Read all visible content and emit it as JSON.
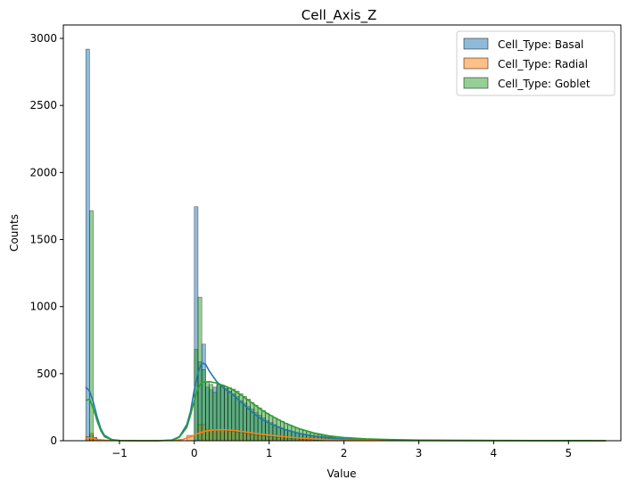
{
  "chart_data": {
    "type": "bar",
    "subtype": "histogram-with-kde",
    "title": "Cell_Axis_Z",
    "xlabel": "Value",
    "ylabel": "Counts",
    "xlim": [
      -1.75,
      5.7
    ],
    "ylim": [
      0,
      3100
    ],
    "xticks": [
      -1,
      0,
      1,
      2,
      3,
      4,
      5
    ],
    "yticks": [
      0,
      500,
      1000,
      1500,
      2000,
      2500,
      3000
    ],
    "grid": false,
    "legend_position": "top-right",
    "series": [
      {
        "name": "Cell_Type: Basal",
        "color": "#1f77b4",
        "bins": [
          [
            -1.45,
            -1.4,
            2920
          ],
          [
            -1.4,
            -1.35,
            40
          ],
          [
            0.0,
            0.05,
            1745
          ],
          [
            0.05,
            0.1,
            590
          ],
          [
            0.1,
            0.15,
            720
          ],
          [
            0.15,
            0.2,
            400
          ],
          [
            0.2,
            0.25,
            380
          ],
          [
            0.25,
            0.3,
            400
          ],
          [
            0.3,
            0.35,
            420
          ],
          [
            0.35,
            0.4,
            405
          ],
          [
            0.4,
            0.45,
            390
          ],
          [
            0.45,
            0.5,
            370
          ],
          [
            0.5,
            0.55,
            350
          ],
          [
            0.55,
            0.6,
            330
          ],
          [
            0.6,
            0.65,
            300
          ],
          [
            0.65,
            0.7,
            280
          ],
          [
            0.7,
            0.75,
            255
          ],
          [
            0.75,
            0.8,
            235
          ],
          [
            0.8,
            0.85,
            210
          ],
          [
            0.85,
            0.9,
            190
          ],
          [
            0.9,
            0.95,
            170
          ],
          [
            0.95,
            1.0,
            150
          ],
          [
            1.0,
            1.05,
            135
          ],
          [
            1.05,
            1.1,
            120
          ],
          [
            1.1,
            1.15,
            105
          ],
          [
            1.15,
            1.2,
            95
          ],
          [
            1.2,
            1.25,
            85
          ],
          [
            1.25,
            1.3,
            75
          ],
          [
            1.3,
            1.35,
            65
          ],
          [
            1.35,
            1.4,
            58
          ],
          [
            1.4,
            1.45,
            50
          ],
          [
            1.45,
            1.5,
            44
          ],
          [
            1.5,
            1.55,
            38
          ],
          [
            1.55,
            1.6,
            33
          ],
          [
            1.6,
            1.65,
            28
          ],
          [
            1.65,
            1.7,
            24
          ],
          [
            1.7,
            1.75,
            20
          ],
          [
            1.75,
            1.8,
            17
          ],
          [
            1.8,
            1.85,
            14
          ],
          [
            1.85,
            1.9,
            12
          ],
          [
            1.9,
            1.95,
            10
          ],
          [
            1.95,
            2.0,
            8
          ],
          [
            2.0,
            2.1,
            12
          ],
          [
            2.1,
            2.2,
            9
          ],
          [
            2.2,
            2.3,
            7
          ],
          [
            2.3,
            2.4,
            5
          ],
          [
            2.4,
            2.5,
            4
          ],
          [
            2.5,
            2.6,
            3
          ],
          [
            2.6,
            2.8,
            4
          ],
          [
            2.8,
            3.0,
            3
          ],
          [
            3.0,
            3.5,
            3
          ],
          [
            3.5,
            4.0,
            2
          ],
          [
            4.0,
            5.5,
            2
          ]
        ],
        "kde": [
          [
            -1.45,
            400
          ],
          [
            -1.4,
            370
          ],
          [
            -1.35,
            290
          ],
          [
            -1.3,
            180
          ],
          [
            -1.25,
            90
          ],
          [
            -1.2,
            40
          ],
          [
            -1.1,
            8
          ],
          [
            -1.0,
            2
          ],
          [
            -0.8,
            0
          ],
          [
            -0.5,
            0
          ],
          [
            -0.3,
            5
          ],
          [
            -0.2,
            30
          ],
          [
            -0.1,
            120
          ],
          [
            -0.05,
            220
          ],
          [
            0.0,
            380
          ],
          [
            0.05,
            510
          ],
          [
            0.1,
            580
          ],
          [
            0.15,
            570
          ],
          [
            0.2,
            520
          ],
          [
            0.3,
            440
          ],
          [
            0.4,
            390
          ],
          [
            0.5,
            350
          ],
          [
            0.6,
            300
          ],
          [
            0.7,
            250
          ],
          [
            0.8,
            200
          ],
          [
            0.9,
            160
          ],
          [
            1.0,
            130
          ],
          [
            1.2,
            85
          ],
          [
            1.4,
            55
          ],
          [
            1.6,
            35
          ],
          [
            1.8,
            22
          ],
          [
            2.0,
            14
          ],
          [
            2.3,
            8
          ],
          [
            2.6,
            5
          ],
          [
            3.0,
            3
          ],
          [
            3.5,
            2
          ],
          [
            4.0,
            1
          ],
          [
            4.5,
            1
          ],
          [
            5.0,
            0
          ],
          [
            5.5,
            0
          ]
        ]
      },
      {
        "name": "Cell_Type: Radial",
        "color": "#ff7f0e",
        "bins": [
          [
            -1.45,
            -1.4,
            30
          ],
          [
            -1.4,
            -1.35,
            55
          ],
          [
            -1.35,
            -1.3,
            25
          ],
          [
            -0.1,
            0.0,
            40
          ],
          [
            0.05,
            0.1,
            120
          ],
          [
            0.1,
            0.15,
            120
          ],
          [
            0.15,
            0.2,
            80
          ],
          [
            0.2,
            0.25,
            80
          ],
          [
            0.25,
            0.3,
            85
          ],
          [
            0.3,
            0.35,
            80
          ],
          [
            0.35,
            0.4,
            78
          ],
          [
            0.4,
            0.45,
            75
          ],
          [
            0.45,
            0.5,
            72
          ],
          [
            0.5,
            0.55,
            68
          ],
          [
            0.55,
            0.6,
            65
          ],
          [
            0.6,
            0.65,
            60
          ],
          [
            0.65,
            0.7,
            56
          ],
          [
            0.7,
            0.75,
            52
          ],
          [
            0.75,
            0.8,
            48
          ],
          [
            0.8,
            0.85,
            44
          ],
          [
            0.85,
            0.9,
            40
          ],
          [
            0.9,
            0.95,
            36
          ],
          [
            0.95,
            1.0,
            32
          ],
          [
            1.0,
            1.05,
            29
          ],
          [
            1.05,
            1.1,
            26
          ],
          [
            1.1,
            1.15,
            23
          ],
          [
            1.15,
            1.2,
            20
          ],
          [
            1.2,
            1.3,
            17
          ],
          [
            1.3,
            1.4,
            14
          ],
          [
            1.4,
            1.5,
            11
          ],
          [
            1.5,
            1.6,
            8
          ],
          [
            1.6,
            1.8,
            6
          ],
          [
            1.8,
            2.0,
            4
          ],
          [
            2.0,
            2.5,
            2
          ]
        ],
        "kde": [
          [
            -1.45,
            20
          ],
          [
            -1.4,
            22
          ],
          [
            -1.35,
            18
          ],
          [
            -1.3,
            10
          ],
          [
            -1.2,
            4
          ],
          [
            -1.0,
            1
          ],
          [
            -0.6,
            0
          ],
          [
            -0.3,
            2
          ],
          [
            -0.15,
            10
          ],
          [
            -0.05,
            30
          ],
          [
            0.05,
            55
          ],
          [
            0.15,
            72
          ],
          [
            0.25,
            80
          ],
          [
            0.35,
            82
          ],
          [
            0.45,
            80
          ],
          [
            0.55,
            75
          ],
          [
            0.65,
            68
          ],
          [
            0.75,
            60
          ],
          [
            0.85,
            52
          ],
          [
            1.0,
            42
          ],
          [
            1.2,
            30
          ],
          [
            1.4,
            20
          ],
          [
            1.6,
            13
          ],
          [
            1.8,
            8
          ],
          [
            2.0,
            5
          ],
          [
            2.5,
            2
          ],
          [
            3.0,
            1
          ],
          [
            4.0,
            0
          ],
          [
            5.5,
            0
          ]
        ]
      },
      {
        "name": "Cell_Type: Goblet",
        "color": "#2ca02c",
        "bins": [
          [
            -1.4,
            -1.35,
            1715
          ],
          [
            -1.35,
            -1.3,
            20
          ],
          [
            0.0,
            0.05,
            680
          ],
          [
            0.05,
            0.1,
            1070
          ],
          [
            0.1,
            0.15,
            530
          ],
          [
            0.15,
            0.2,
            440
          ],
          [
            0.2,
            0.25,
            420
          ],
          [
            0.25,
            0.3,
            360
          ],
          [
            0.3,
            0.35,
            420
          ],
          [
            0.35,
            0.4,
            415
          ],
          [
            0.4,
            0.45,
            405
          ],
          [
            0.45,
            0.5,
            395
          ],
          [
            0.5,
            0.55,
            385
          ],
          [
            0.55,
            0.6,
            370
          ],
          [
            0.6,
            0.65,
            350
          ],
          [
            0.65,
            0.7,
            330
          ],
          [
            0.7,
            0.75,
            310
          ],
          [
            0.75,
            0.8,
            285
          ],
          [
            0.8,
            0.85,
            265
          ],
          [
            0.85,
            0.9,
            245
          ],
          [
            0.9,
            0.95,
            225
          ],
          [
            0.95,
            1.0,
            205
          ],
          [
            1.0,
            1.05,
            188
          ],
          [
            1.05,
            1.1,
            172
          ],
          [
            1.1,
            1.15,
            158
          ],
          [
            1.15,
            1.2,
            145
          ],
          [
            1.2,
            1.25,
            130
          ],
          [
            1.25,
            1.3,
            118
          ],
          [
            1.3,
            1.35,
            105
          ],
          [
            1.35,
            1.4,
            95
          ],
          [
            1.4,
            1.45,
            85
          ],
          [
            1.45,
            1.5,
            75
          ],
          [
            1.5,
            1.55,
            66
          ],
          [
            1.55,
            1.6,
            58
          ],
          [
            1.6,
            1.65,
            50
          ],
          [
            1.65,
            1.7,
            44
          ],
          [
            1.7,
            1.75,
            38
          ],
          [
            1.75,
            1.8,
            33
          ],
          [
            1.8,
            1.85,
            28
          ],
          [
            1.85,
            1.9,
            24
          ],
          [
            1.9,
            1.95,
            20
          ],
          [
            1.95,
            2.0,
            17
          ],
          [
            2.0,
            2.1,
            25
          ],
          [
            2.1,
            2.2,
            19
          ],
          [
            2.2,
            2.3,
            15
          ],
          [
            2.3,
            2.4,
            11
          ],
          [
            2.4,
            2.5,
            8
          ],
          [
            2.5,
            2.6,
            6
          ],
          [
            2.6,
            2.8,
            8
          ],
          [
            2.8,
            3.0,
            5
          ],
          [
            3.0,
            3.5,
            4
          ],
          [
            3.5,
            4.0,
            2
          ],
          [
            4.0,
            5.0,
            2
          ]
        ],
        "kde": [
          [
            -1.45,
            300
          ],
          [
            -1.4,
            310
          ],
          [
            -1.35,
            240
          ],
          [
            -1.3,
            150
          ],
          [
            -1.25,
            75
          ],
          [
            -1.2,
            30
          ],
          [
            -1.1,
            6
          ],
          [
            -1.0,
            1
          ],
          [
            -0.8,
            0
          ],
          [
            -0.5,
            0
          ],
          [
            -0.3,
            4
          ],
          [
            -0.2,
            25
          ],
          [
            -0.1,
            100
          ],
          [
            -0.05,
            190
          ],
          [
            0.0,
            300
          ],
          [
            0.05,
            390
          ],
          [
            0.1,
            435
          ],
          [
            0.2,
            440
          ],
          [
            0.3,
            430
          ],
          [
            0.4,
            410
          ],
          [
            0.5,
            385
          ],
          [
            0.6,
            350
          ],
          [
            0.7,
            310
          ],
          [
            0.8,
            270
          ],
          [
            0.9,
            230
          ],
          [
            1.0,
            195
          ],
          [
            1.2,
            135
          ],
          [
            1.4,
            90
          ],
          [
            1.6,
            58
          ],
          [
            1.8,
            36
          ],
          [
            2.0,
            24
          ],
          [
            2.3,
            14
          ],
          [
            2.6,
            9
          ],
          [
            3.0,
            5
          ],
          [
            3.5,
            3
          ],
          [
            4.0,
            2
          ],
          [
            4.5,
            1
          ],
          [
            5.0,
            1
          ],
          [
            5.5,
            0
          ]
        ]
      }
    ]
  }
}
